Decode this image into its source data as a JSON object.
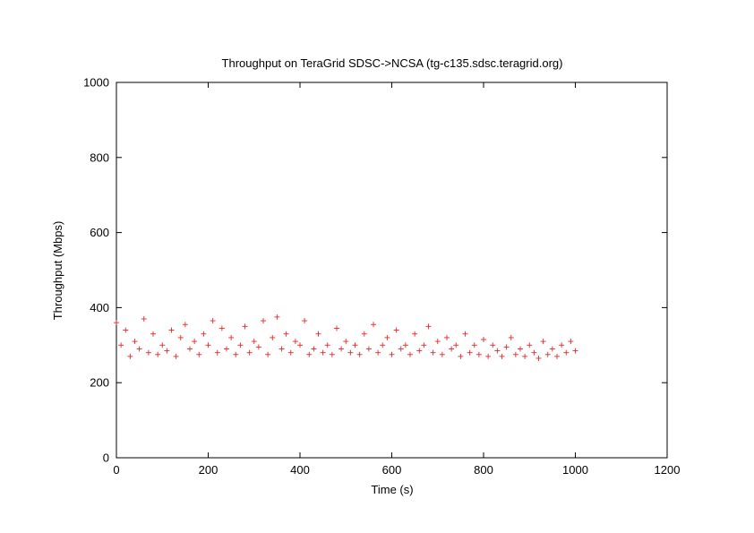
{
  "chart_data": {
    "type": "scatter",
    "title": "Throughput on TeraGrid SDSC->NCSA (tg-c135.sdsc.teragrid.org)",
    "xlabel": "Time (s)",
    "ylabel": "Throughput (Mbps)",
    "xlim": [
      0,
      1200
    ],
    "ylim": [
      0,
      1000
    ],
    "xticks": [
      "0",
      "200",
      "400",
      "600",
      "800",
      "1000",
      "1200"
    ],
    "yticks": [
      "0",
      "200",
      "400",
      "600",
      "800",
      "1000"
    ],
    "marker": "+",
    "color": "#e8272a",
    "grid": false,
    "series": [
      {
        "x": [
          0,
          10,
          20,
          30,
          40,
          50,
          60,
          70,
          80,
          90,
          100,
          110,
          120,
          130,
          140,
          150,
          160,
          170,
          180,
          190,
          200,
          210,
          220,
          230,
          240,
          250,
          260,
          270,
          280,
          290,
          300,
          310,
          320,
          330,
          340,
          350,
          360,
          370,
          380,
          390,
          400,
          410,
          420,
          430,
          440,
          450,
          460,
          470,
          480,
          490,
          500,
          510,
          520,
          530,
          540,
          550,
          560,
          570,
          580,
          590,
          600,
          610,
          620,
          630,
          640,
          650,
          660,
          670,
          680,
          690,
          700,
          710,
          720,
          730,
          740,
          750,
          760,
          770,
          780,
          790,
          800,
          810,
          820,
          830,
          840,
          850,
          860,
          870,
          880,
          890,
          900,
          910,
          920,
          930,
          940,
          950,
          960,
          970,
          980,
          990,
          1000
        ],
        "values": [
          360,
          300,
          340,
          270,
          310,
          290,
          370,
          280,
          330,
          275,
          300,
          285,
          340,
          270,
          320,
          355,
          290,
          310,
          275,
          330,
          300,
          365,
          280,
          345,
          290,
          320,
          275,
          300,
          350,
          280,
          310,
          295,
          365,
          275,
          320,
          375,
          290,
          330,
          280,
          310,
          300,
          365,
          275,
          290,
          330,
          280,
          300,
          275,
          345,
          290,
          310,
          280,
          300,
          275,
          330,
          290,
          355,
          280,
          300,
          320,
          275,
          340,
          290,
          300,
          275,
          330,
          285,
          300,
          350,
          280,
          310,
          275,
          320,
          290,
          300,
          270,
          330,
          280,
          300,
          275,
          315,
          270,
          300,
          285,
          270,
          295,
          320,
          275,
          290,
          270,
          300,
          280,
          265,
          310,
          275,
          290,
          270,
          300,
          280,
          310,
          285
        ]
      }
    ]
  }
}
